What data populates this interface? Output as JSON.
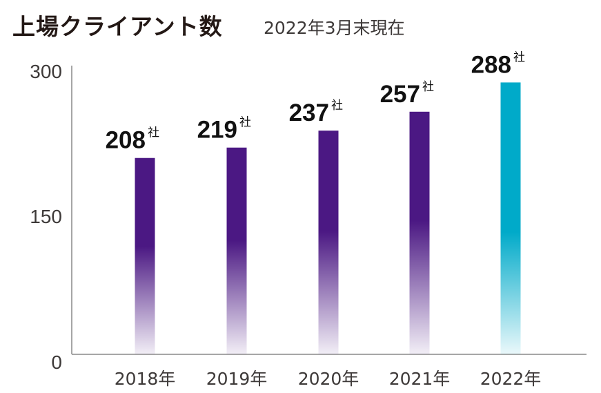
{
  "header": {
    "title": "上場クライアント数",
    "subtitle": "2022年3月末現在"
  },
  "colors": {
    "bar_purple": "#4b1883",
    "bar_cyan": "#00aac9",
    "axis": "#888888"
  },
  "chart_data": {
    "type": "bar",
    "categories": [
      "2018年",
      "2019年",
      "2020年",
      "2021年",
      "2022年"
    ],
    "values": [
      208,
      219,
      237,
      257,
      288
    ],
    "value_labels": [
      "208",
      "219",
      "237",
      "257",
      "288"
    ],
    "unit": "社",
    "ylim": [
      0,
      300
    ],
    "yticks": [
      0,
      150,
      300
    ],
    "ytick_labels": [
      "0",
      "150",
      "300"
    ],
    "highlight_index": 4,
    "grid": false,
    "legend": "none",
    "xlabel": "",
    "ylabel": ""
  }
}
